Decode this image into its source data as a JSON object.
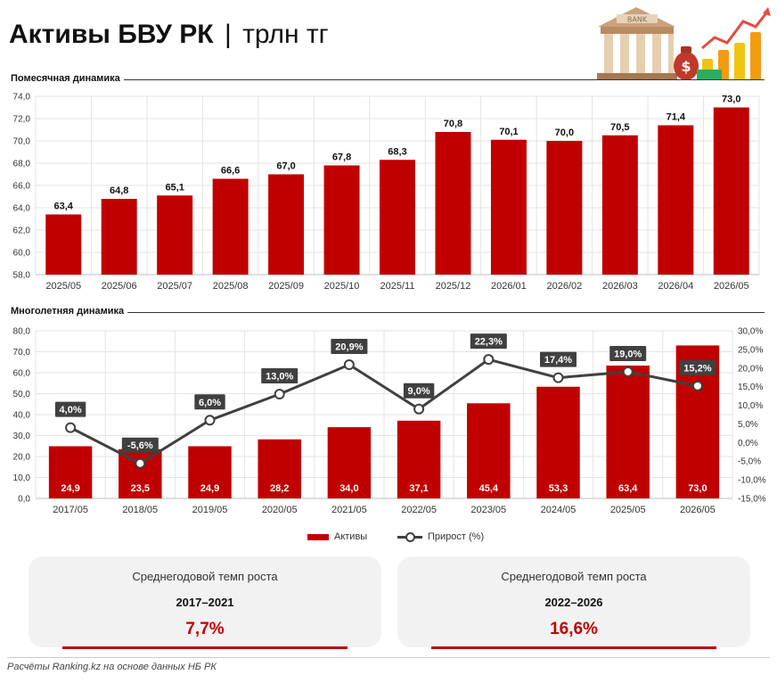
{
  "header": {
    "title_bold": "Активы БВУ РК",
    "separator": "|",
    "title_unit": "трлн тг"
  },
  "illustration": {
    "icon": "bank-building-with-money-bag-and-growth-chart",
    "bank_sign": "BANK",
    "bag_symbol": "$"
  },
  "colors": {
    "bar": "#c00000",
    "line": "#404040",
    "card_bg": "#f2f2f2",
    "accent": "#c00000"
  },
  "chart_data": [
    {
      "type": "bar",
      "section_label": "Помесячная динамика",
      "categories": [
        "2025/05",
        "2025/06",
        "2025/07",
        "2025/08",
        "2025/09",
        "2025/10",
        "2025/11",
        "2025/12",
        "2026/01",
        "2026/02",
        "2026/03",
        "2026/04",
        "2026/05"
      ],
      "values": [
        63.4,
        64.8,
        65.1,
        66.6,
        67.0,
        67.8,
        68.3,
        70.8,
        70.1,
        70.0,
        70.5,
        71.4,
        73.0
      ],
      "value_labels": [
        "63,4",
        "64,8",
        "65,1",
        "66,6",
        "67,0",
        "67,8",
        "68,3",
        "70,8",
        "70,1",
        "70,0",
        "70,5",
        "71,4",
        "73,0"
      ],
      "ylim": [
        58,
        74
      ],
      "yticks": [
        "58,0",
        "60,0",
        "62,0",
        "64,0",
        "66,0",
        "68,0",
        "70,0",
        "72,0",
        "74,0"
      ],
      "grid": true,
      "legend": "none"
    },
    {
      "type": "bar+line",
      "section_label": "Многолетняя динамика",
      "categories": [
        "2017/05",
        "2018/05",
        "2019/05",
        "2020/05",
        "2021/05",
        "2022/05",
        "2023/05",
        "2024/05",
        "2025/05",
        "2026/05"
      ],
      "series": [
        {
          "name": "Активы",
          "type": "bar",
          "axis": "left",
          "values": [
            24.9,
            23.5,
            24.9,
            28.2,
            34.0,
            37.1,
            45.4,
            53.3,
            63.4,
            73.0
          ],
          "labels": [
            "24,9",
            "23,5",
            "24,9",
            "28,2",
            "34,0",
            "37,1",
            "45,4",
            "53,3",
            "63,4",
            "73,0"
          ]
        },
        {
          "name": "Прирост (%)",
          "type": "line",
          "axis": "right",
          "values": [
            4.0,
            -5.6,
            6.0,
            13.0,
            20.9,
            9.0,
            22.3,
            17.4,
            19.0,
            15.2
          ],
          "labels": [
            "4,0%",
            "-5,6%",
            "6,0%",
            "13,0%",
            "20,9%",
            "9,0%",
            "22,3%",
            "17,4%",
            "19,0%",
            "15,2%"
          ]
        }
      ],
      "ylim_left": [
        0,
        80
      ],
      "yticks_left": [
        "0,0",
        "10,0",
        "20,0",
        "30,0",
        "40,0",
        "50,0",
        "60,0",
        "70,0",
        "80,0"
      ],
      "ylim_right": [
        -15,
        30
      ],
      "yticks_right": [
        "-15,0%",
        "-10,0%",
        "-5,0%",
        "0,0%",
        "5,0%",
        "10,0%",
        "15,0%",
        "20,0%",
        "25,0%",
        "30,0%"
      ],
      "grid": true,
      "legend": "bottom-center"
    }
  ],
  "cards": [
    {
      "title": "Среднегодовой темп роста",
      "period": "2017–2021",
      "value": "7,7%"
    },
    {
      "title": "Среднегодовой темп роста",
      "period": "2022–2026",
      "value": "16,6%"
    }
  ],
  "footer": {
    "source": "Расчёты Ranking.kz на основе данных НБ РК"
  }
}
